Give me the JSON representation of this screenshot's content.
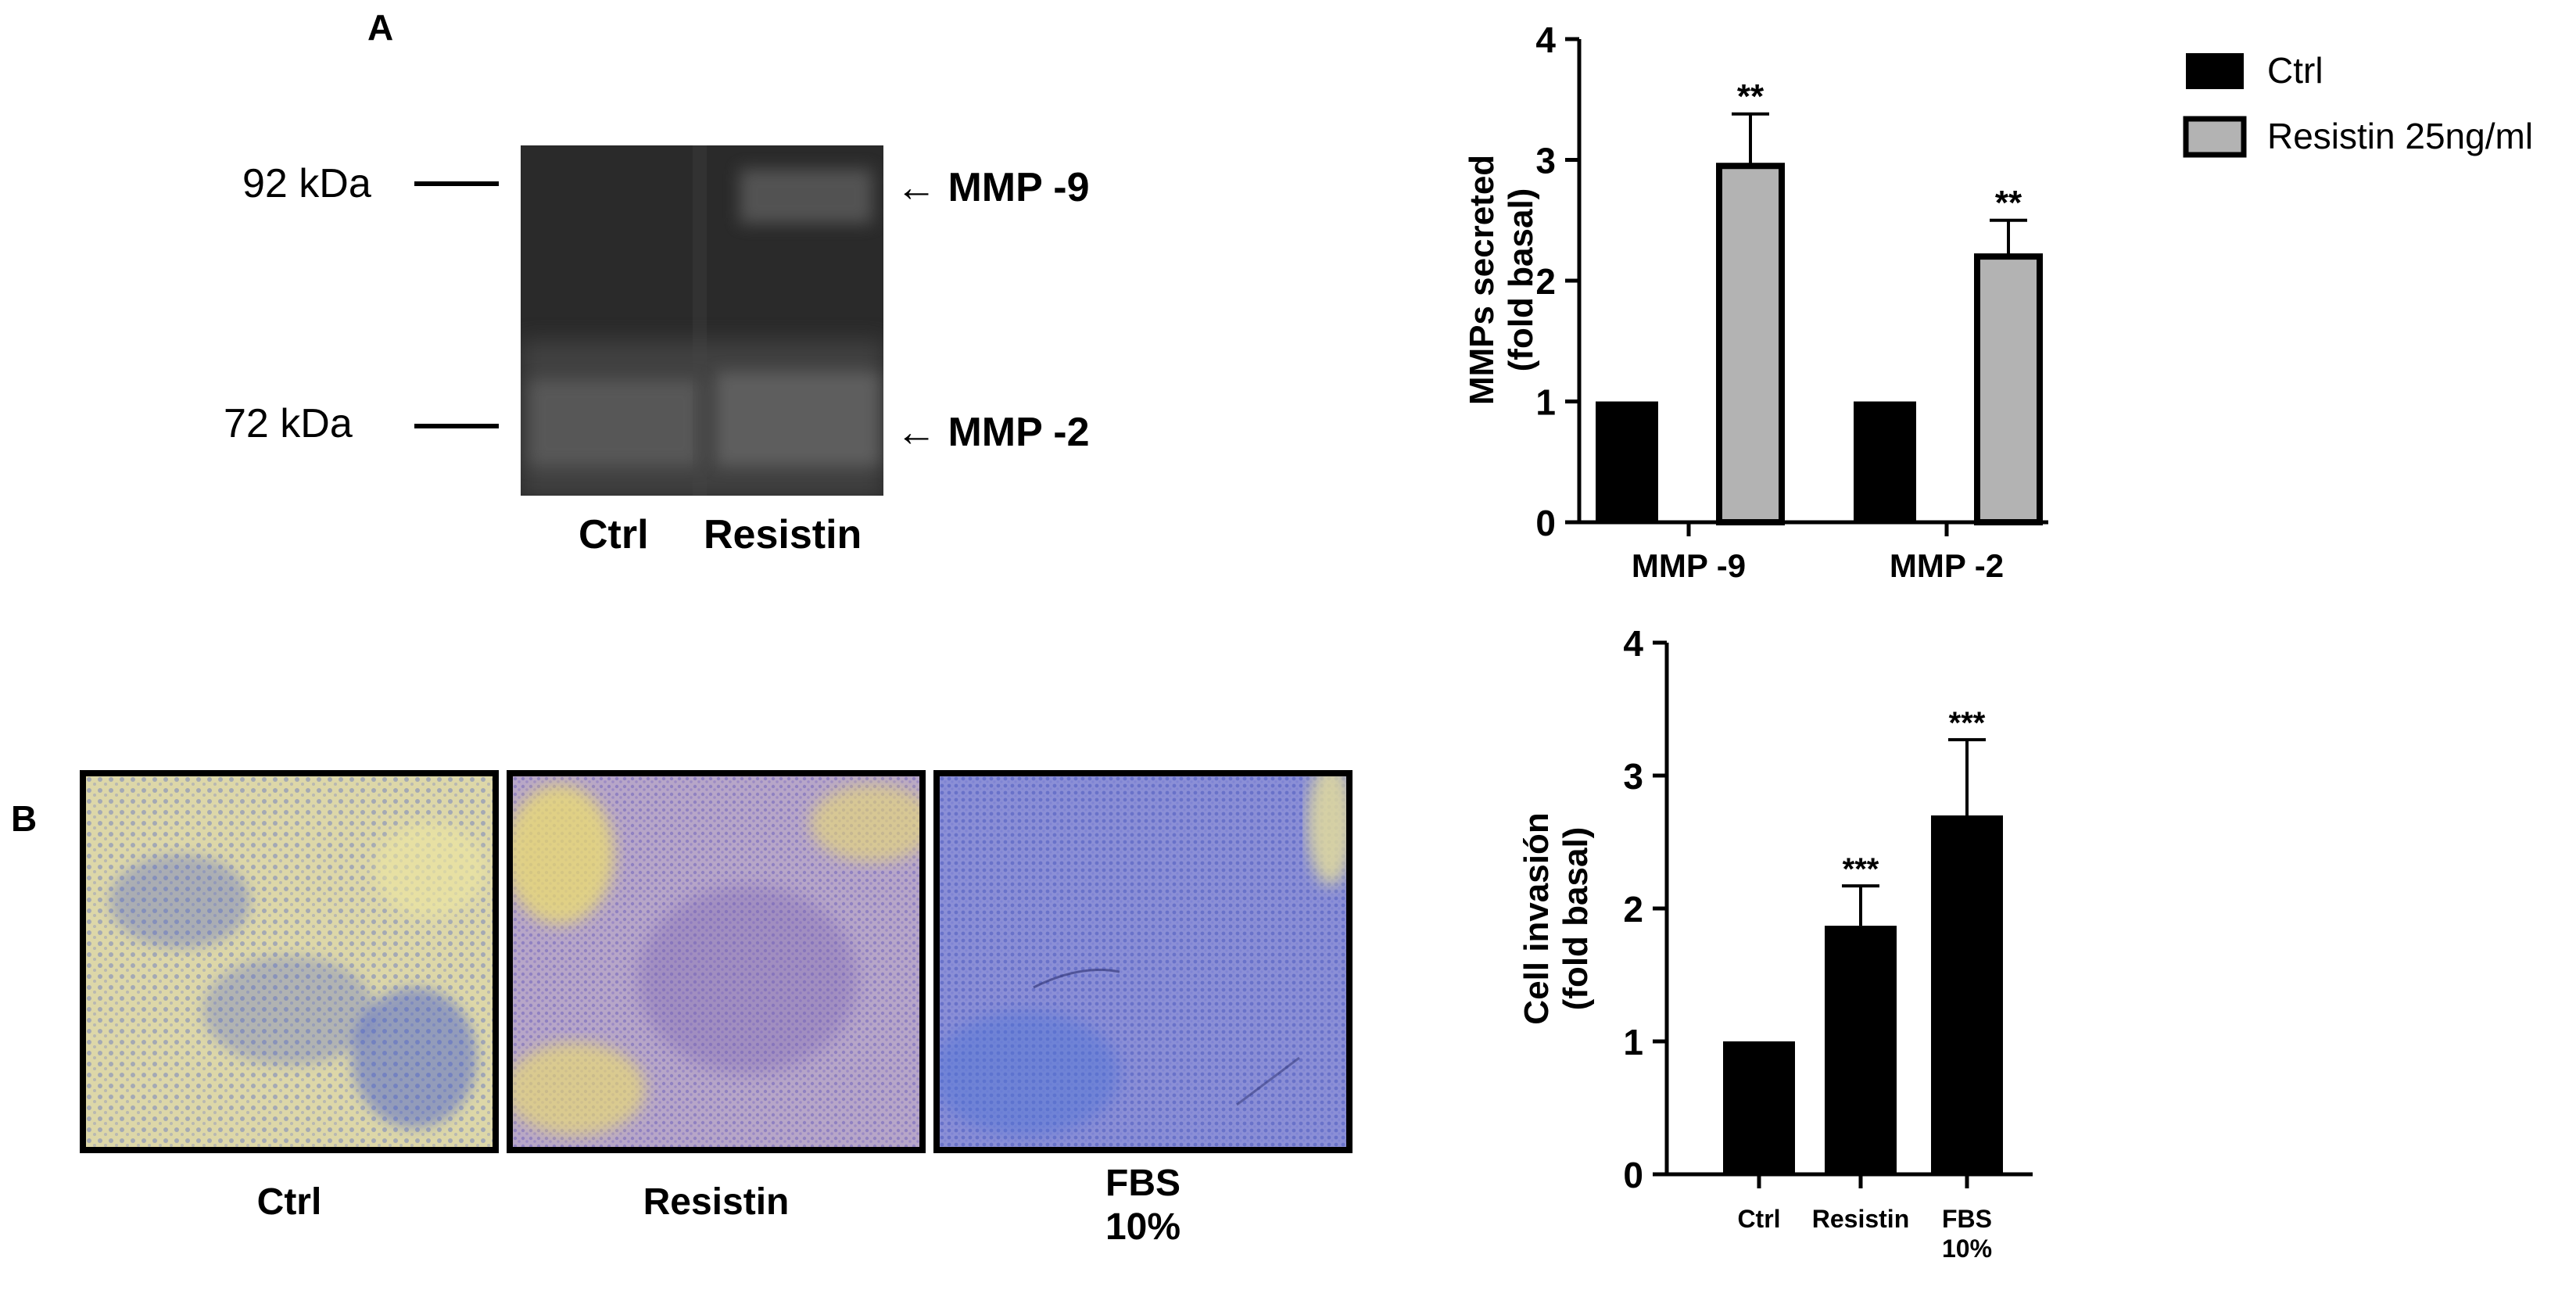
{
  "panel_a": {
    "letter": "A",
    "markers": [
      "92 kDa",
      "72 kDa"
    ],
    "bands": [
      "MMP -9",
      "MMP -2"
    ],
    "lanes": [
      "Ctrl",
      "Resistin"
    ],
    "arrow_glyph": "←"
  },
  "panel_b": {
    "letter": "B",
    "images": [
      {
        "label": "Ctrl",
        "sublabel": ""
      },
      {
        "label": "Resistin",
        "sublabel": ""
      },
      {
        "label": "FBS",
        "sublabel": "10%"
      }
    ]
  },
  "colors": {
    "ctrl": "#000000",
    "resistin": "#b3b3b3",
    "blot": "#2b2b2b",
    "stain_blue": "#3f55c8",
    "stain_yellow": "#e8e19a"
  },
  "chart_data": [
    {
      "type": "bar",
      "title": "",
      "categories": [
        "MMP -9",
        "MMP -2"
      ],
      "ylabel_line1": "MMPs secreted",
      "ylabel_line2": "(fold  basal)",
      "xlabel": "",
      "ylim": [
        0,
        4
      ],
      "yticks": [
        0,
        1,
        2,
        3,
        4
      ],
      "legend_position": "top-right",
      "series": [
        {
          "name": "Ctrl",
          "color": "#000000",
          "values": [
            1,
            1
          ],
          "errors": [
            0,
            0
          ],
          "sig": [
            "",
            ""
          ]
        },
        {
          "name": "Resistin 25ng/ml",
          "color": "#b3b3b3",
          "values": [
            2.95,
            2.2
          ],
          "errors": [
            0.43,
            0.3
          ],
          "sig": [
            "**",
            "**"
          ]
        }
      ]
    },
    {
      "type": "bar",
      "title": "",
      "categories": [
        "Ctrl",
        "Resistin",
        "FBS"
      ],
      "category_sublabels": [
        "",
        "",
        "10%"
      ],
      "ylabel_line1": "Cell invasión",
      "ylabel_line2": "(fold basal)",
      "xlabel": "",
      "ylim": [
        0,
        4
      ],
      "yticks": [
        0,
        1,
        2,
        3,
        4
      ],
      "values": [
        1,
        1.87,
        2.7
      ],
      "errors": [
        0,
        0.3,
        0.57
      ],
      "sig": [
        "",
        "***",
        "***"
      ],
      "color": "#000000"
    }
  ]
}
